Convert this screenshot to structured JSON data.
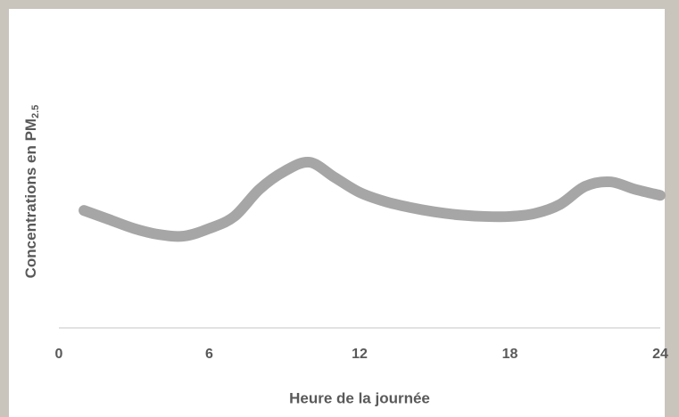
{
  "chart_data": {
    "type": "line",
    "xlabel": "Heure de la journée",
    "ylabel": "Concentrations en PM",
    "ylabel_subscript": "2.5",
    "x": [
      1,
      2,
      3,
      4,
      5,
      6,
      7,
      8,
      9,
      10,
      11,
      12,
      13,
      14,
      15,
      16,
      17,
      18,
      19,
      20,
      21,
      22,
      23,
      24
    ],
    "series": [
      {
        "color": "#a6a6a6",
        "values": [
          39,
          36,
          33,
          31,
          30.5,
          33,
          37,
          46,
          52,
          55,
          50,
          45,
          42,
          40,
          38.5,
          37.5,
          37,
          37,
          38,
          41,
          47,
          48.5,
          46,
          44
        ]
      }
    ],
    "xlim": [
      0,
      24
    ],
    "xticks": [
      0,
      6,
      12,
      18,
      24
    ],
    "ylim": [
      0,
      100
    ],
    "grid": false
  }
}
